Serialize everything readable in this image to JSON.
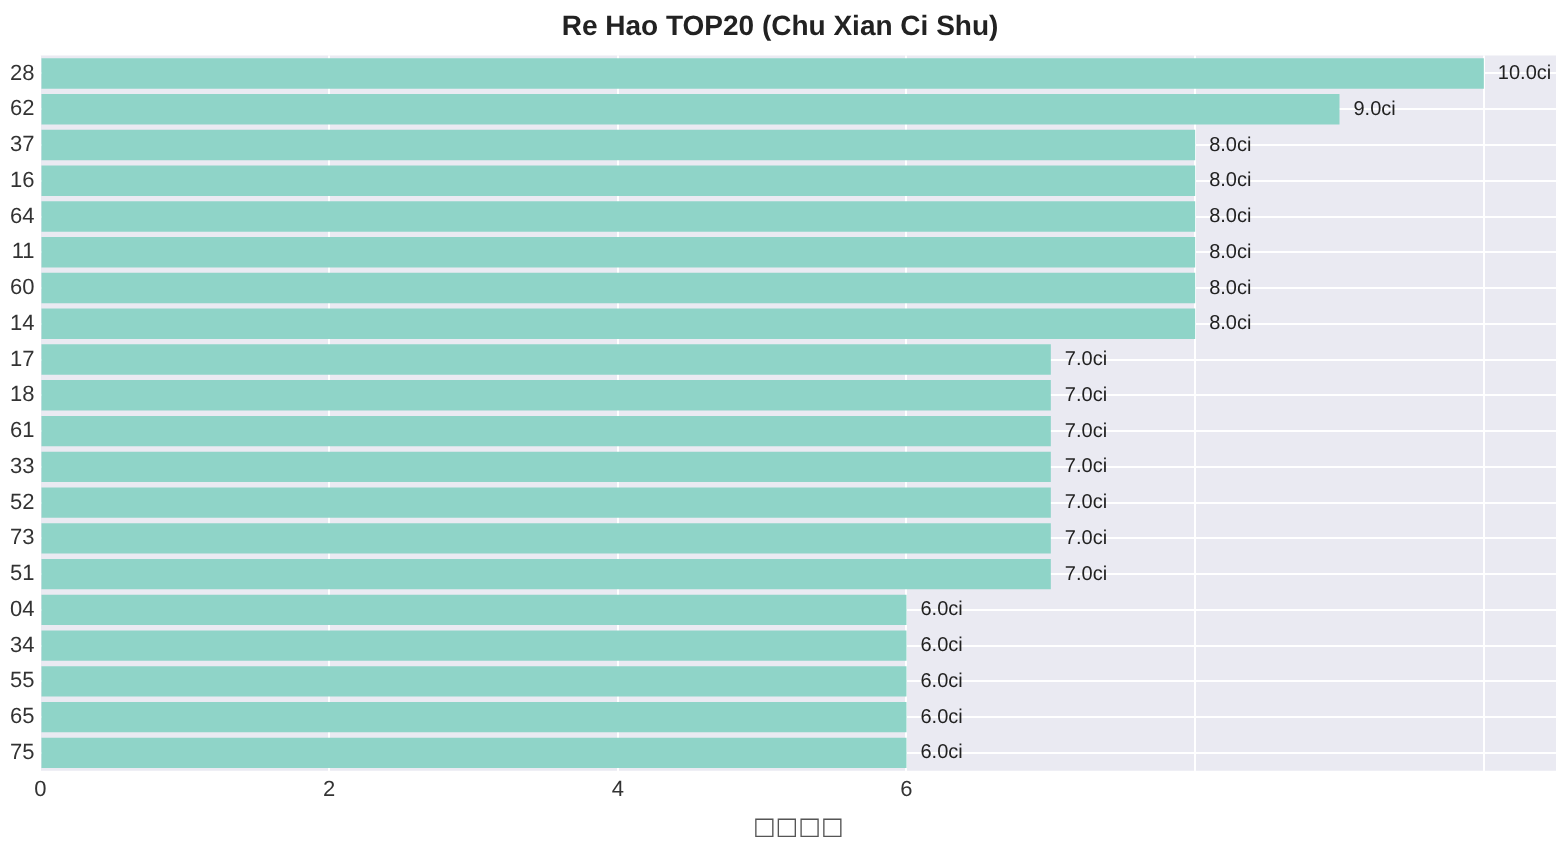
{
  "chart_data": {
    "type": "bar",
    "orientation": "horizontal",
    "title": "Re Hao TOP20 (Chu Xian Ci Shu)",
    "xlabel": "□□□□",
    "categories": [
      "28",
      "62",
      "37",
      "16",
      "64",
      "11",
      "60",
      "14",
      "17",
      "18",
      "61",
      "33",
      "52",
      "73",
      "51",
      "04",
      "34",
      "55",
      "65",
      "75"
    ],
    "values": [
      10,
      9,
      8,
      8,
      8,
      8,
      8,
      8,
      7,
      7,
      7,
      7,
      7,
      7,
      7,
      6,
      6,
      6,
      6,
      6
    ],
    "value_labels": [
      "10.0ci",
      "9.0ci",
      "8.0ci",
      "8.0ci",
      "8.0ci",
      "8.0ci",
      "8.0ci",
      "8.0ci",
      "7.0ci",
      "7.0ci",
      "7.0ci",
      "7.0ci",
      "7.0ci",
      "7.0ci",
      "7.0ci",
      "6.0ci",
      "6.0ci",
      "6.0ci",
      "6.0ci",
      "6.0ci"
    ],
    "color": "#8fd4c8",
    "xlim": [
      0,
      10.5
    ],
    "xticks": [
      0,
      2,
      4,
      6,
      {
        "value": 8,
        "label": null
      },
      {
        "value": 10,
        "label": null
      }
    ],
    "grid": true,
    "legend": false
  }
}
